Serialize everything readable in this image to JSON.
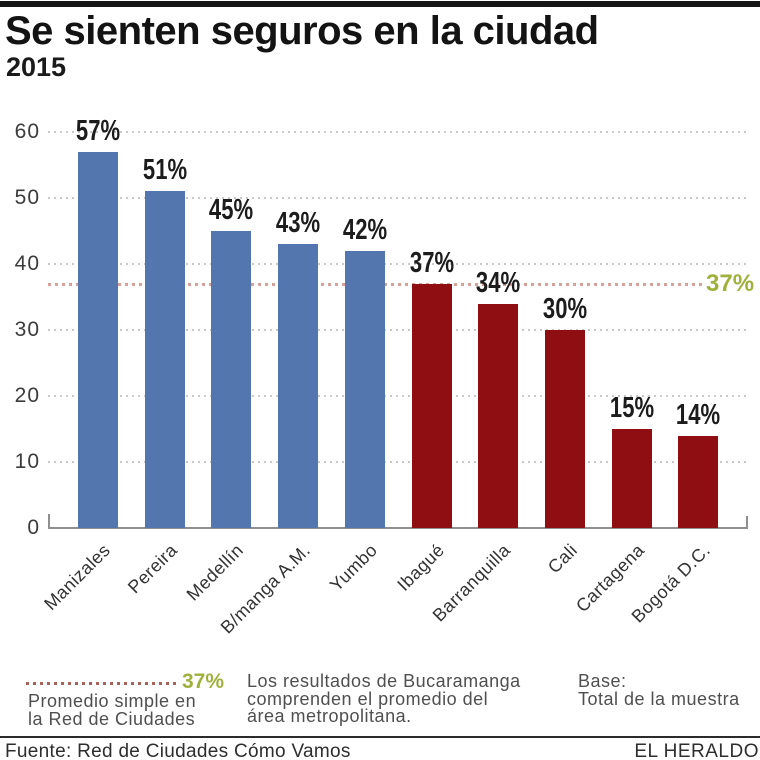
{
  "header": {
    "title": "Se sienten seguros en la ciudad",
    "subtitle": "2015"
  },
  "chart_data": {
    "type": "bar",
    "title": "Se sienten seguros en la ciudad",
    "subtitle": "2015",
    "categories": [
      "Manizales",
      "Pereira",
      "Medellín",
      "B/manga A.M.",
      "Yumbo",
      "Ibagué",
      "Barranquilla",
      "Cali",
      "Cartagena",
      "Bogotá D.C."
    ],
    "values": [
      57,
      51,
      45,
      43,
      42,
      37,
      34,
      30,
      15,
      14
    ],
    "value_labels": [
      "57%",
      "51%",
      "45%",
      "43%",
      "42%",
      "37%",
      "34%",
      "30%",
      "15%",
      "14%"
    ],
    "bar_colors": [
      "#5476af",
      "#5476af",
      "#5476af",
      "#5476af",
      "#5476af",
      "#8e0e11",
      "#8e0e11",
      "#8e0e11",
      "#8e0e11",
      "#8e0e11"
    ],
    "ylim": [
      0,
      60
    ],
    "yticks": [
      0,
      10,
      20,
      30,
      40,
      50,
      60
    ],
    "grid": "horizontal dotted gray",
    "legend_position": "none",
    "average_line": {
      "value": 37,
      "label": "37%",
      "line_color": "#d8a09b",
      "label_color": "#9fb03c"
    }
  },
  "legend": {
    "average_label": "37%",
    "average_desc_line1": "Promedio simple en",
    "average_desc_line2": "la Red de Ciudades",
    "note_line1": "Los resultados de Bucaramanga",
    "note_line2": "comprenden el promedio del",
    "note_line3": "área metropolitana.",
    "base_line1": "Base:",
    "base_line2": "Total de la muestra"
  },
  "footer": {
    "source": "Fuente: Red de Ciudades Cómo Vamos",
    "brand": "EL HERALDO"
  },
  "colors": {
    "bar_blue": "#5476af",
    "bar_dark_red": "#8e0e11",
    "average_green": "#9fb03c",
    "average_line_red": "#d8a09b",
    "grid_gray": "#c9c9c9",
    "axis_gray": "#8f8f8f"
  }
}
